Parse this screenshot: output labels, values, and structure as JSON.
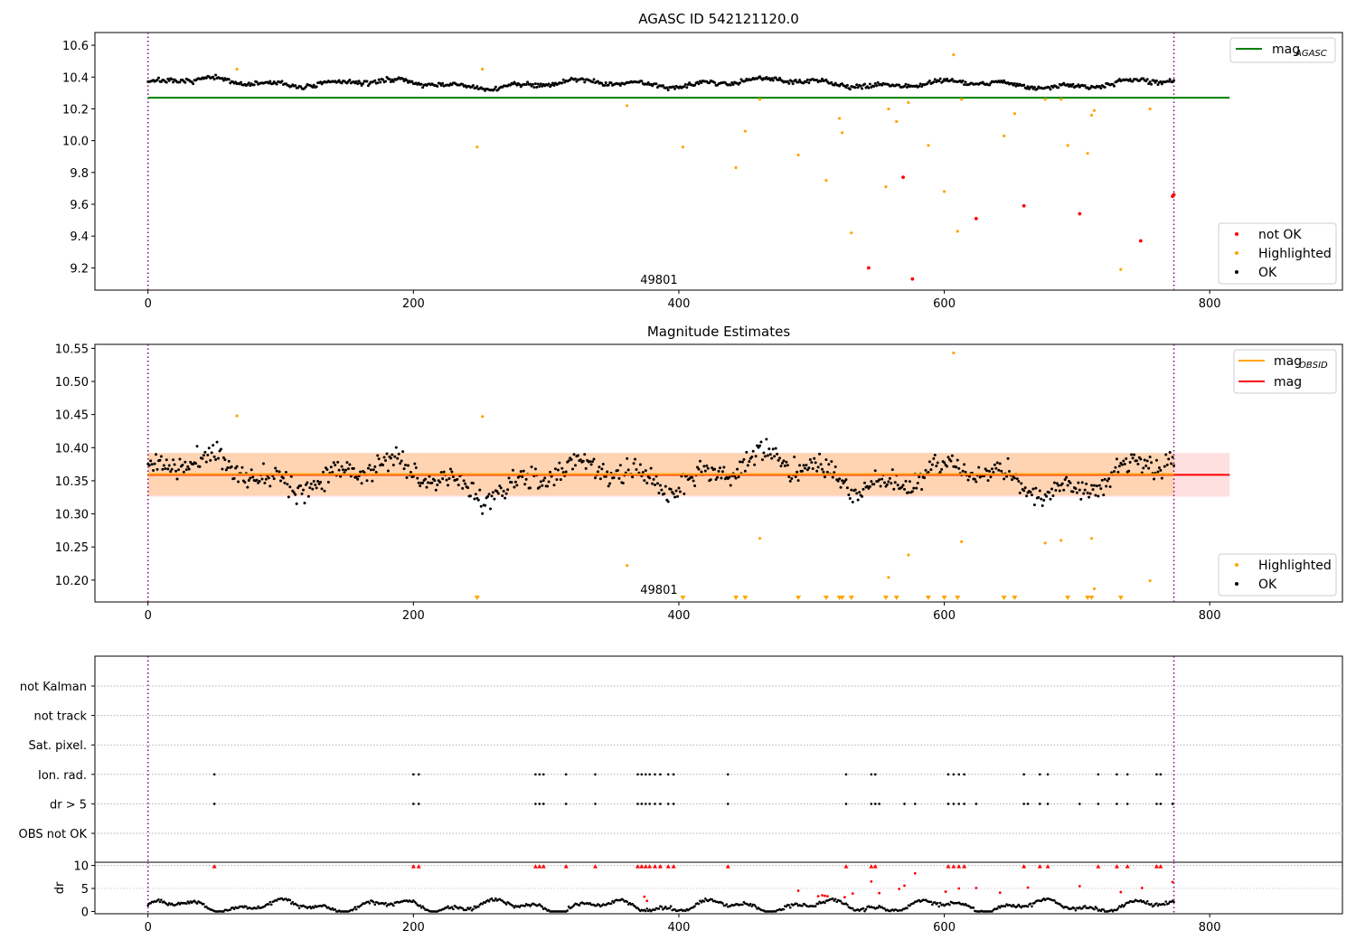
{
  "chart_data": [
    {
      "type": "scatter",
      "title": "AGASC ID 542121120.0",
      "annotation": "49801",
      "xlim": [
        -40,
        900
      ],
      "ylim": [
        9.06,
        10.68
      ],
      "xticks": [
        0,
        200,
        400,
        600,
        800
      ],
      "yticks": [
        9.2,
        9.4,
        9.6,
        9.8,
        10.0,
        10.2,
        10.4,
        10.6
      ],
      "ytick_labels": [
        "9.2",
        "9.4",
        "9.6",
        "9.8",
        "10.0",
        "10.2",
        "10.4",
        "10.6"
      ],
      "vlines": [
        0,
        773
      ],
      "reference_line": {
        "name": "mag",
        "name_sub": "AGASC",
        "y": 10.27,
        "x": [
          0,
          815
        ],
        "color": "#008000"
      },
      "legend_top": [
        {
          "name": "mag",
          "name_sub": "AGASC",
          "color": "#008000"
        }
      ],
      "legend_bottom": [
        {
          "name": "not OK",
          "color": "#ff0000"
        },
        {
          "name": "Highlighted",
          "color": "#ffa500"
        },
        {
          "name": "OK",
          "color": "#000000"
        }
      ],
      "ok_series": {
        "name": "OK",
        "n": 774,
        "mean": 10.36,
        "color": "#000000"
      },
      "highlighted_points": [
        [
          67,
          10.45
        ],
        [
          252,
          10.45
        ],
        [
          248,
          9.96
        ],
        [
          361,
          10.22
        ],
        [
          403,
          9.96
        ],
        [
          443,
          9.83
        ],
        [
          450,
          10.06
        ],
        [
          461,
          10.26
        ],
        [
          490,
          9.91
        ],
        [
          511,
          9.75
        ],
        [
          521,
          10.14
        ],
        [
          523,
          10.05
        ],
        [
          530,
          9.42
        ],
        [
          556,
          9.71
        ],
        [
          558,
          10.2
        ],
        [
          564,
          10.12
        ],
        [
          573,
          10.24
        ],
        [
          588,
          9.97
        ],
        [
          600,
          9.68
        ],
        [
          607,
          10.54
        ],
        [
          610,
          9.43
        ],
        [
          613,
          10.26
        ],
        [
          653,
          10.17
        ],
        [
          645,
          10.03
        ],
        [
          676,
          10.26
        ],
        [
          688,
          10.26
        ],
        [
          693,
          9.97
        ],
        [
          708,
          9.92
        ],
        [
          711,
          10.16
        ],
        [
          713,
          10.19
        ],
        [
          733,
          9.19
        ],
        [
          755,
          10.2
        ]
      ],
      "notok_points": [
        [
          543,
          9.2
        ],
        [
          569,
          9.77
        ],
        [
          576,
          9.13
        ],
        [
          624,
          9.51
        ],
        [
          660,
          9.59
        ],
        [
          702,
          9.54
        ],
        [
          748,
          9.37
        ],
        [
          772,
          9.65
        ],
        [
          773,
          9.66
        ]
      ]
    },
    {
      "type": "scatter",
      "title": "Magnitude Estimates",
      "annotation": "49801",
      "xlim": [
        -40,
        900
      ],
      "ylim": [
        10.167,
        10.556
      ],
      "xticks": [
        0,
        200,
        400,
        600,
        800
      ],
      "yticks": [
        10.2,
        10.25,
        10.3,
        10.35,
        10.4,
        10.45,
        10.5,
        10.55
      ],
      "ytick_labels": [
        "10.20",
        "10.25",
        "10.30",
        "10.35",
        "10.40",
        "10.45",
        "10.50",
        "10.55"
      ],
      "vlines": [
        0,
        773
      ],
      "mag_line": {
        "name": "mag",
        "y": 10.359,
        "x": [
          0,
          815
        ],
        "color": "#ff0000",
        "band": [
          10.326,
          10.392
        ]
      },
      "mag_obsid": {
        "name": "mag",
        "name_sub": "OBSID",
        "y": 10.36,
        "x": [
          0,
          773
        ],
        "color": "#ffa500",
        "band": [
          10.328,
          10.392
        ]
      },
      "legend_top": [
        {
          "name": "mag",
          "name_sub": "OBSID",
          "color": "#ffa500"
        },
        {
          "name": "mag",
          "color": "#ff0000"
        }
      ],
      "legend_bottom": [
        {
          "name": "Highlighted",
          "color": "#ffa500"
        },
        {
          "name": "OK",
          "color": "#000000"
        }
      ],
      "ok_series": {
        "name": "OK",
        "n": 774,
        "mean": 10.358,
        "color": "#000000"
      },
      "highlighted_points": [
        [
          67,
          10.448
        ],
        [
          252,
          10.447
        ],
        [
          361,
          10.222
        ],
        [
          461,
          10.263
        ],
        [
          558,
          10.204
        ],
        [
          573,
          10.238
        ],
        [
          607,
          10.543
        ],
        [
          613,
          10.258
        ],
        [
          676,
          10.256
        ],
        [
          688,
          10.26
        ],
        [
          711,
          10.263
        ],
        [
          713,
          10.187
        ],
        [
          755,
          10.199
        ]
      ],
      "below_axis_markers": [
        248,
        403,
        443,
        450,
        490,
        511,
        521,
        523,
        530,
        556,
        564,
        588,
        600,
        610,
        645,
        653,
        693,
        708,
        711,
        733
      ]
    },
    {
      "type": "scatter",
      "title": "",
      "xlim": [
        -40,
        900
      ],
      "xticks": [
        0,
        200,
        400,
        600,
        800
      ],
      "vlines": [
        0,
        773
      ],
      "categories": [
        "not Kalman",
        "not track",
        "Sat. pixel.",
        "Ion. rad.",
        "dr > 5",
        "OBS not OK"
      ],
      "flags": {
        "Ion. rad.": [
          50,
          200,
          204,
          292,
          295,
          298,
          315,
          337,
          369,
          372,
          375,
          378,
          382,
          386,
          392,
          396,
          437,
          526,
          545,
          548,
          603,
          607,
          611,
          615,
          660,
          672,
          678,
          716,
          730,
          738,
          760,
          763
        ],
        "dr > 5": [
          50,
          200,
          204,
          292,
          295,
          298,
          315,
          337,
          369,
          372,
          375,
          378,
          382,
          386,
          392,
          396,
          437,
          526,
          545,
          548,
          551,
          570,
          578,
          603,
          607,
          611,
          615,
          624,
          660,
          663,
          672,
          678,
          702,
          716,
          730,
          738,
          760,
          763,
          772
        ]
      }
    },
    {
      "type": "line",
      "title": "",
      "ylabel": "dr",
      "xlim": [
        -40,
        900
      ],
      "ylim": [
        -0.5,
        10.7
      ],
      "yticks": [
        0,
        5,
        10
      ],
      "xticks": [
        0,
        200,
        400,
        600,
        800
      ],
      "vlines": [
        0,
        773
      ],
      "threshold": 10,
      "ok_series": {
        "name": "dr",
        "n": 774,
        "color": "#000000"
      },
      "clipped_red_at_10": [
        50,
        200,
        204,
        292,
        295,
        298,
        315,
        337,
        369,
        372,
        375,
        378,
        382,
        386,
        392,
        396,
        437,
        526,
        545,
        548,
        603,
        607,
        611,
        615,
        660,
        672,
        678,
        716,
        730,
        738,
        760,
        763
      ],
      "red_points": [
        [
          374,
          3.2
        ],
        [
          376,
          2.3
        ],
        [
          490,
          4.5
        ],
        [
          505,
          3.3
        ],
        [
          508,
          3.5
        ],
        [
          510,
          3.4
        ],
        [
          512,
          3.3
        ],
        [
          525,
          3.1
        ],
        [
          531,
          3.9
        ],
        [
          545,
          6.5
        ],
        [
          551,
          4.0
        ],
        [
          566,
          4.9
        ],
        [
          570,
          5.6
        ],
        [
          578,
          8.3
        ],
        [
          601,
          4.3
        ],
        [
          611,
          5.0
        ],
        [
          624,
          5.1
        ],
        [
          642,
          4.1
        ],
        [
          663,
          5.2
        ],
        [
          702,
          5.5
        ],
        [
          733,
          4.2
        ],
        [
          749,
          5.1
        ],
        [
          772,
          6.4
        ]
      ]
    }
  ]
}
